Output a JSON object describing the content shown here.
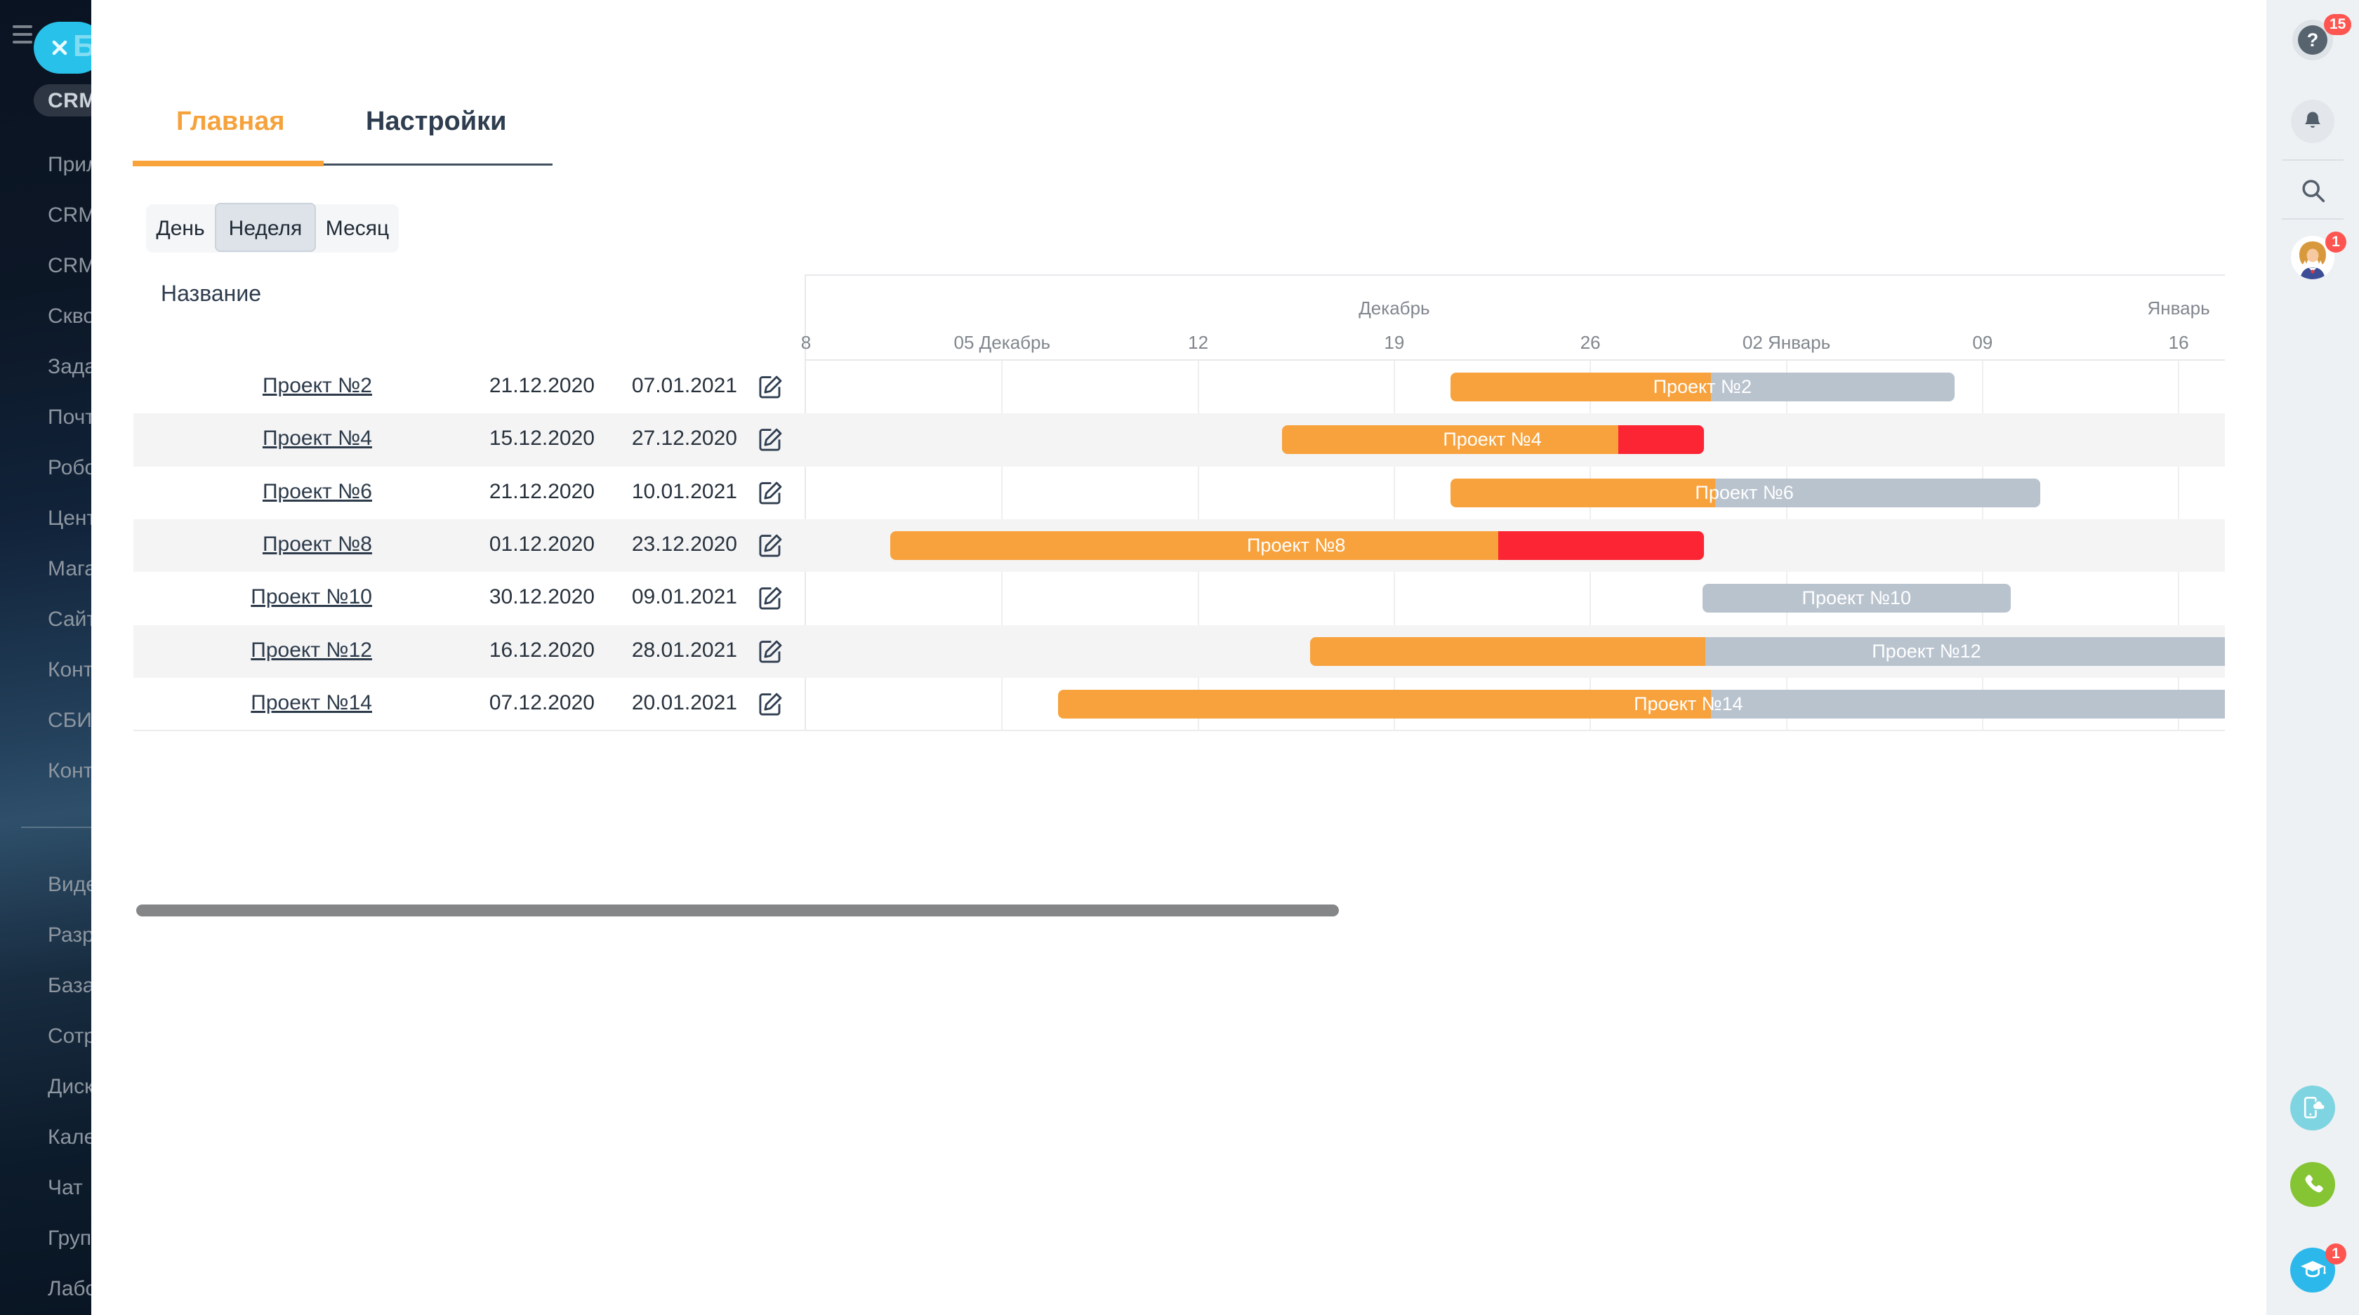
{
  "app": {
    "logo_fragment": "Би"
  },
  "sidebar": {
    "active_item": "CRM",
    "items_top": [
      "Прил",
      "CRM",
      "CRM",
      "Скво",
      "Зада",
      "Почт",
      "Робо",
      "Цент",
      "Мага",
      "Сайт",
      "Конт",
      "СБИ",
      "Конт"
    ],
    "items_bottom": [
      "Виде",
      "Разр",
      "База",
      "Сотр",
      "Диск",
      "Кале",
      "Чат",
      "Груп",
      "Лабо"
    ]
  },
  "tabs": [
    {
      "label": "Главная",
      "active": true
    },
    {
      "label": "Настройки",
      "active": false
    }
  ],
  "view_switch": {
    "options": [
      "День",
      "Неделя",
      "Месяц"
    ],
    "selected": "Неделя"
  },
  "table": {
    "name_header": "Название"
  },
  "chart_data": {
    "type": "gantt",
    "timescale": "week",
    "origin_date": "28.11.2020",
    "months": [
      {
        "label": "Декабрь",
        "day": 21
      },
      {
        "label": "Январь",
        "day": 49
      }
    ],
    "ticks": [
      {
        "label": "8",
        "day": 0
      },
      {
        "label": "05 Декабрь",
        "day": 7
      },
      {
        "label": "12",
        "day": 14
      },
      {
        "label": "19",
        "day": 21
      },
      {
        "label": "26",
        "day": 28
      },
      {
        "label": "02 Январь",
        "day": 35
      },
      {
        "label": "09",
        "day": 42
      },
      {
        "label": "16",
        "day": 49
      }
    ],
    "projects": [
      {
        "name": "Проект №2",
        "start": "21.12.2020",
        "end": "07.01.2021",
        "label_day": 32,
        "segments": [
          {
            "kind": "progress",
            "from": 23,
            "to": 32.3
          },
          {
            "kind": "planned",
            "from": 32.3,
            "to": 41
          }
        ]
      },
      {
        "name": "Проект №4",
        "start": "15.12.2020",
        "end": "27.12.2020",
        "label_day": 24.5,
        "segments": [
          {
            "kind": "progress",
            "from": 17,
            "to": 29
          },
          {
            "kind": "overdue",
            "from": 29,
            "to": 32.05
          }
        ]
      },
      {
        "name": "Проект №6",
        "start": "21.12.2020",
        "end": "10.01.2021",
        "label_day": 33.5,
        "segments": [
          {
            "kind": "progress",
            "from": 23,
            "to": 32.45
          },
          {
            "kind": "planned",
            "from": 32.45,
            "to": 44.05
          }
        ]
      },
      {
        "name": "Проект №8",
        "start": "01.12.2020",
        "end": "23.12.2020",
        "label_day": 17.5,
        "segments": [
          {
            "kind": "progress",
            "from": 3,
            "to": 24.7
          },
          {
            "kind": "overdue",
            "from": 24.7,
            "to": 32.05
          }
        ]
      },
      {
        "name": "Проект №10",
        "start": "30.12.2020",
        "end": "09.01.2021",
        "label_day": 37.5,
        "segments": [
          {
            "kind": "planned",
            "from": 32,
            "to": 43
          }
        ]
      },
      {
        "name": "Проект №12",
        "start": "16.12.2020",
        "end": "28.01.2021",
        "label_day": 40,
        "segments": [
          {
            "kind": "progress",
            "from": 18,
            "to": 32.1
          },
          {
            "kind": "planned",
            "from": 32.1,
            "to": 62
          }
        ]
      },
      {
        "name": "Проект №14",
        "start": "07.12.2020",
        "end": "20.01.2021",
        "label_day": 31.5,
        "segments": [
          {
            "kind": "progress",
            "from": 9,
            "to": 32.3
          },
          {
            "kind": "planned",
            "from": 32.3,
            "to": 54
          }
        ]
      }
    ],
    "colors": {
      "progress": "#F7A23C",
      "overdue": "#FB2533",
      "planned": "#B9C3CE"
    }
  },
  "rightbar": {
    "help_badge": "15",
    "avatar_badge": "1",
    "training_badge": "1"
  }
}
